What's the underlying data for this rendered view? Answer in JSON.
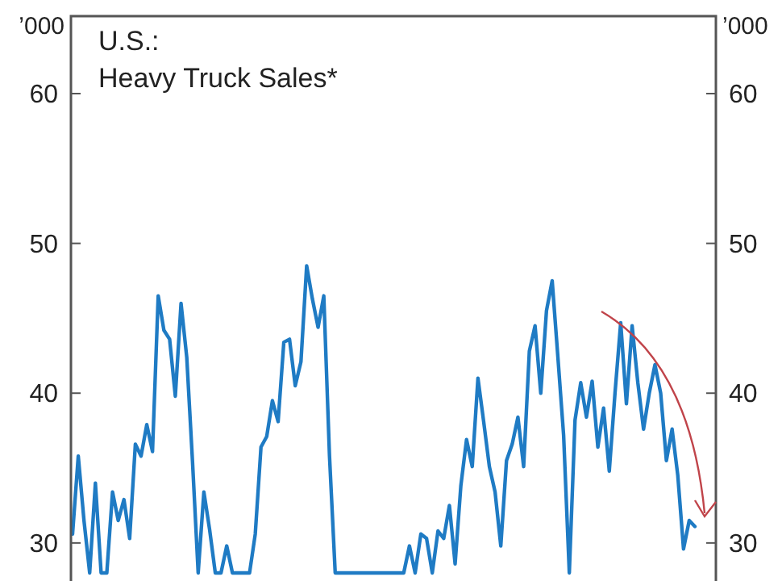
{
  "chart_data": {
    "type": "line",
    "title": "U.S.:",
    "subtitle": "Heavy Truck Sales*",
    "ylabel": "’000",
    "y2label": "’000",
    "categories": [
      null,
      null,
      null,
      null,
      null,
      null,
      null,
      null,
      null,
      null,
      null,
      null,
      null,
      null,
      null,
      null,
      null,
      null,
      null,
      null,
      null,
      null,
      null,
      null,
      null,
      null,
      null,
      null,
      null,
      null,
      null,
      null,
      null,
      null,
      null,
      null,
      null,
      null,
      null,
      null,
      null,
      null,
      null,
      null,
      null,
      null,
      null,
      null,
      null,
      null,
      null,
      null,
      null,
      null,
      null,
      null,
      null,
      null,
      null,
      null,
      null,
      null,
      null,
      null,
      null,
      null,
      null,
      null,
      null,
      null,
      null,
      null,
      null,
      null,
      null,
      null,
      null,
      null,
      null,
      null,
      null,
      null,
      null,
      null,
      null,
      null,
      null,
      null,
      null,
      null,
      null,
      null,
      null,
      null,
      null,
      null,
      null,
      null,
      null,
      null,
      null,
      null,
      null,
      null,
      null,
      null,
      null,
      null,
      null,
      null
    ],
    "series": [
      {
        "color": "#1f7bc4",
        "values": [
          30.6,
          35.8,
          31.5,
          28,
          34,
          28,
          28,
          33.4,
          31.5,
          32.9,
          30.3,
          36.6,
          35.8,
          37.9,
          36.1,
          46.5,
          44.2,
          43.6,
          39.8,
          46,
          42.4,
          35.5,
          28,
          33.4,
          30.9,
          28,
          28,
          29.8,
          28,
          28,
          28,
          28,
          30.6,
          36.4,
          37.1,
          39.5,
          38.1,
          43.4,
          43.6,
          40.5,
          42.1,
          48.5,
          46.3,
          44.4,
          46.5,
          35.8,
          28,
          28,
          28,
          28,
          28,
          28,
          28,
          28,
          28,
          28,
          28,
          28,
          28,
          29.8,
          28,
          30.6,
          30.3,
          28,
          30.8,
          30.3,
          32.5,
          28.6,
          33.8,
          36.9,
          35.1,
          41,
          38.1,
          35.1,
          33.4,
          29.8,
          35.5,
          36.6,
          38.4,
          35.1,
          42.8,
          44.5,
          40,
          45.5,
          47.5,
          42.4,
          37.2,
          28,
          38.2,
          40.7,
          38.4,
          40.8,
          36.4,
          39,
          34.8,
          40,
          44.7,
          39.3,
          44.5,
          40.7,
          37.6,
          40,
          41.9,
          40,
          35.5,
          37.6,
          34.5,
          29.6,
          31.5,
          31.1
        ]
      }
    ],
    "ylim": [
      27.46,
      65.2
    ],
    "yticks": [
      30,
      40,
      50,
      60
    ],
    "y2lim": [
      27.46,
      65.2
    ],
    "y2ticks": [
      30,
      40,
      50,
      60
    ],
    "line_style": "solid"
  }
}
